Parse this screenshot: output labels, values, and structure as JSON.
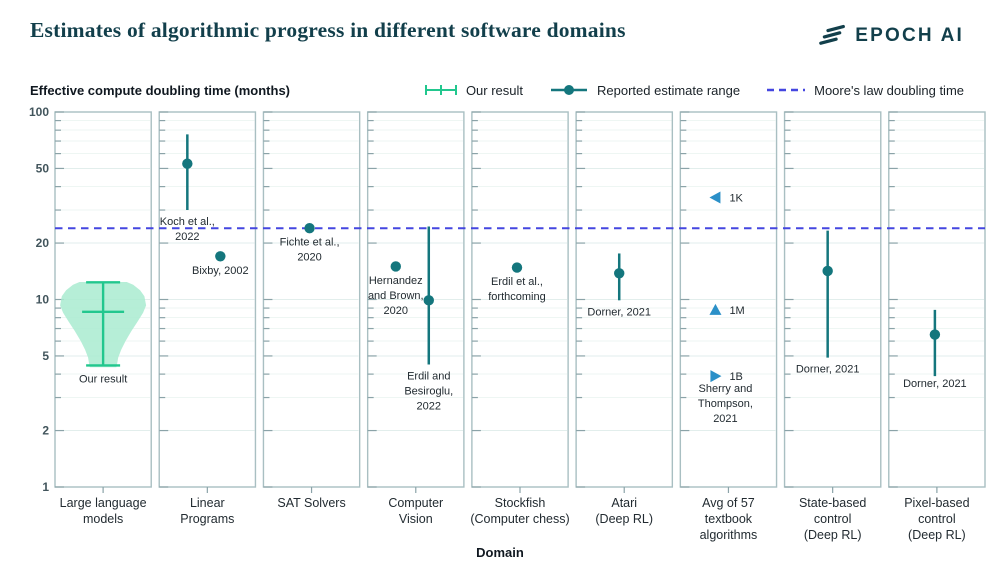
{
  "header": {
    "title": "Estimates of algorithmic progress in different software domains",
    "logo_text": "EPOCH AI"
  },
  "legend": {
    "axis_title": "Effective compute doubling time (months)",
    "items": [
      {
        "label": "Our result",
        "type": "error-bar",
        "color": "#22c78e"
      },
      {
        "label": "Reported estimate range",
        "type": "line-with-dot",
        "color": "#14767d"
      },
      {
        "label": "Moore's law doubling time",
        "type": "dashed-line",
        "color": "#4446e0"
      }
    ]
  },
  "chart_data": {
    "type": "scatter",
    "title": "Estimates of algorithmic progress in different software domains",
    "xlabel": "Domain",
    "ylabel": "Effective compute doubling time (months)",
    "yscale": "log",
    "ylim": [
      1,
      100
    ],
    "ytick_labels": [
      100,
      50,
      20,
      10,
      5,
      2,
      1
    ],
    "minor_ticks": [
      3,
      4,
      6,
      7,
      8,
      9,
      30,
      40,
      60,
      70,
      80,
      90
    ],
    "moores_law_doubling_months": 24,
    "grid": true,
    "colors": {
      "our_result": "#22c78e",
      "violin_fill": "#a9ebd0",
      "reported": "#14767d",
      "moores_law": "#4446e0",
      "triangle": "#2b90c8",
      "panel_border": "#a9bfc2",
      "grid_major": "#e2eeec",
      "grid_minor": "#eef6f3",
      "tick": "#8ba3a8",
      "label_text": "#222b31",
      "axis_text": "#42555c",
      "xlabel_text": "#101820"
    },
    "panels": [
      {
        "category": "Large language models",
        "category_lines": [
          "Large language",
          "models"
        ],
        "our_result": {
          "label": "Our result",
          "median": 8.6,
          "lo": 4.45,
          "hi": 12.35,
          "violin": [
            [
              12.4,
              0.55
            ],
            [
              12.0,
              0.7
            ],
            [
              11.2,
              0.86
            ],
            [
              10.4,
              0.96
            ],
            [
              9.3,
              1.0
            ],
            [
              8.5,
              0.93
            ],
            [
              7.6,
              0.8
            ],
            [
              6.8,
              0.66
            ],
            [
              6.0,
              0.52
            ],
            [
              5.4,
              0.42
            ],
            [
              4.9,
              0.35
            ],
            [
              4.6,
              0.33
            ],
            [
              4.35,
              0.31
            ]
          ]
        }
      },
      {
        "category": "Linear Programs",
        "category_lines": [
          "Linear",
          "Programs"
        ],
        "estimates": [
          {
            "label": "Koch et al., 2022",
            "label_lines": [
              "Koch et al.,",
              "2022"
            ],
            "value": 53,
            "lo": 30,
            "hi": 76,
            "dx": -20
          },
          {
            "label": "Bixby, 2002",
            "label_lines": [
              "Bixby, 2002"
            ],
            "value": 17,
            "dx": 13
          }
        ]
      },
      {
        "category": "SAT Solvers",
        "category_lines": [
          "SAT Solvers"
        ],
        "estimates": [
          {
            "label": "Fichte et al., 2020",
            "label_lines": [
              "Fichte et al.,",
              "2020"
            ],
            "value": 24,
            "dx": -2
          }
        ]
      },
      {
        "category": "Computer Vision",
        "category_lines": [
          "Computer",
          "Vision"
        ],
        "estimates": [
          {
            "label": "Hernandez and Brown, 2020",
            "label_lines": [
              "Hernandez",
              "and Brown,",
              "2020"
            ],
            "value": 15,
            "dx": -20
          },
          {
            "label": "Erdil and Besiroglu, 2022",
            "label_lines": [
              "Erdil and",
              "Besiroglu,",
              "2022"
            ],
            "value": 9.9,
            "lo": 4.5,
            "hi": 24.5,
            "dx": 13
          }
        ]
      },
      {
        "category": "Stockfish (Computer chess)",
        "category_lines": [
          "Stockfish",
          "(Computer chess)"
        ],
        "estimates": [
          {
            "label": "Erdil et al., forthcoming",
            "label_lines": [
              "Erdil et al.,",
              "forthcoming"
            ],
            "value": 14.8,
            "dx": -3
          }
        ]
      },
      {
        "category": "Atari (Deep RL)",
        "category_lines": [
          "Atari",
          "(Deep RL)"
        ],
        "estimates": [
          {
            "label": "Dorner, 2021",
            "label_lines": [
              "Dorner, 2021"
            ],
            "value": 13.8,
            "lo": 9.9,
            "hi": 17.6,
            "dx": -5
          }
        ]
      },
      {
        "category": "Avg of 57 textbook algorithms",
        "category_lines": [
          "Avg of 57",
          "textbook",
          "algorithms"
        ],
        "triangles": [
          {
            "label": "1K",
            "direction": "left",
            "value": 35
          },
          {
            "label": "1M",
            "direction": "up",
            "value": 8.8
          },
          {
            "label": "1B",
            "direction": "right",
            "value": 3.9
          }
        ],
        "source_label": {
          "label": "Sherry and Thompson, 2021",
          "label_lines": [
            "Sherry and",
            "Thompson,",
            "2021"
          ],
          "below_value": 3.9,
          "dx": -3
        }
      },
      {
        "category": "State-based control (Deep RL)",
        "category_lines": [
          "State-based",
          "control",
          "(Deep RL)"
        ],
        "estimates": [
          {
            "label": "Dorner, 2021",
            "label_lines": [
              "Dorner, 2021"
            ],
            "value": 14.2,
            "lo": 4.9,
            "hi": 23.3,
            "dx": -5
          }
        ]
      },
      {
        "category": "Pixel-based control (Deep RL)",
        "category_lines": [
          "Pixel-based",
          "control",
          "(Deep RL)"
        ],
        "estimates": [
          {
            "label": "Dorner, 2021",
            "label_lines": [
              "Dorner, 2021"
            ],
            "value": 6.5,
            "lo": 3.9,
            "hi": 8.8,
            "dx": -2,
            "label_dy": -4
          }
        ]
      }
    ]
  }
}
